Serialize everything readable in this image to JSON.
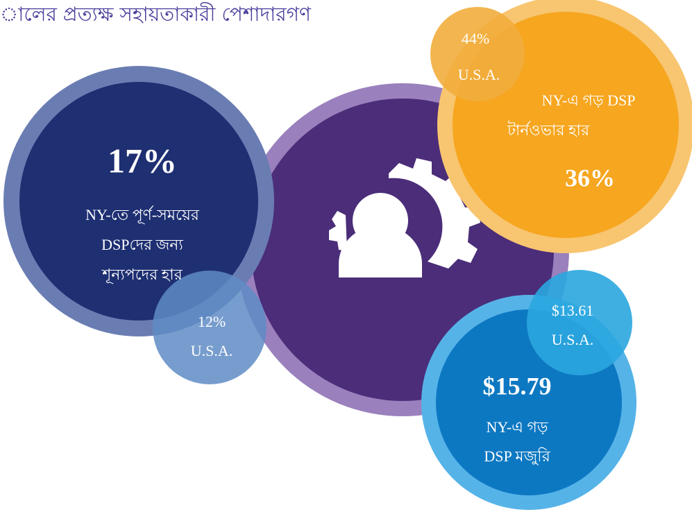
{
  "title": "ালের প্রত্যক্ষ সহায়তাকারী পেশাদারগণ",
  "vacancy": {
    "value": "17%",
    "lines": [
      "NY-তে পূর্ণ-সময়ের",
      "DSPদের জন্য",
      "শূন্যপদের হার"
    ],
    "us_value": "12%",
    "us_label": "U.S.A."
  },
  "turnover": {
    "value": "36%",
    "lines": [
      "NY-এ গড় DSP",
      "টার্নওভার হার"
    ],
    "us_value": "44%",
    "us_label": "U.S.A."
  },
  "wage": {
    "value": "$15.79",
    "lines": [
      "NY-এ গড়",
      "DSP মজুরি"
    ],
    "us_value": "$13.61",
    "us_label": "U.S.A."
  }
}
